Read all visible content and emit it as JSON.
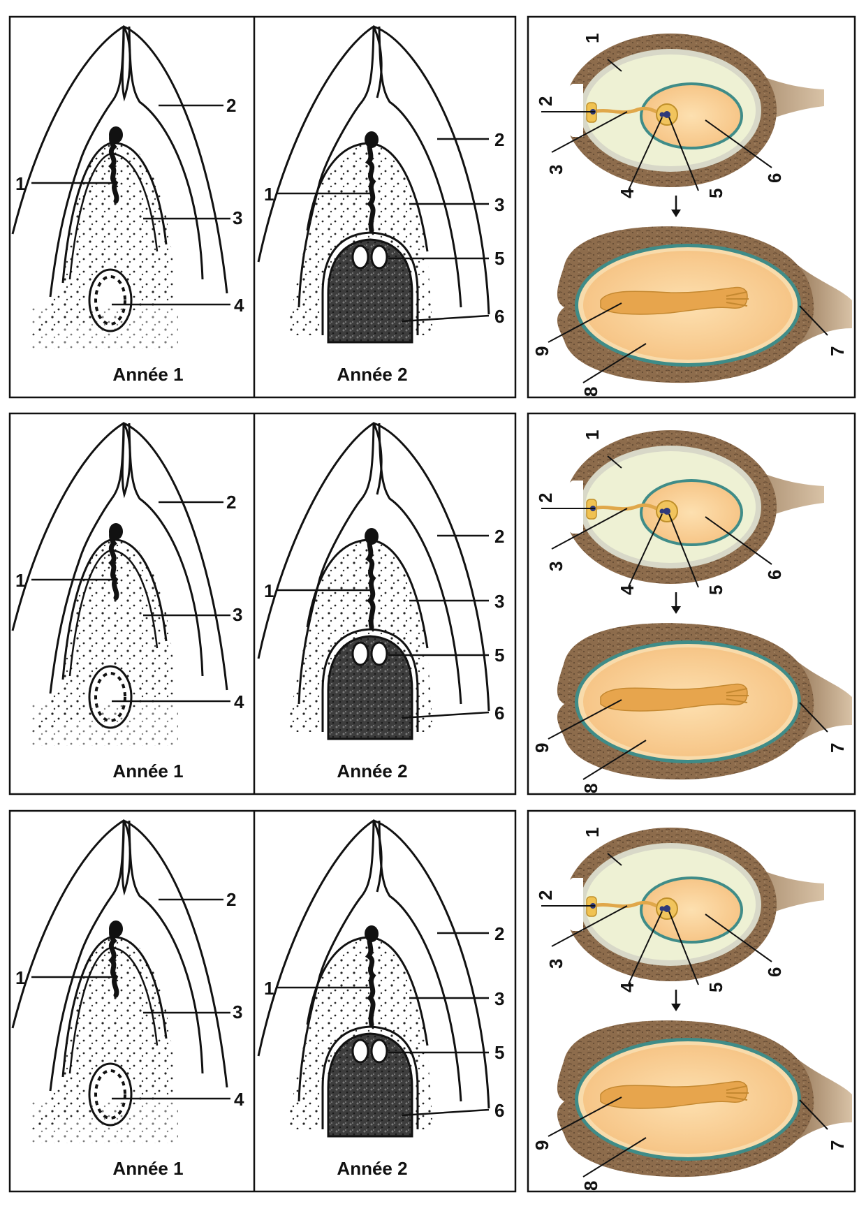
{
  "rows": [
    {
      "left_panel": {
        "year1": {
          "caption": "Année 1",
          "labels": [
            "1",
            "2",
            "3",
            "4"
          ]
        },
        "year2": {
          "caption": "Année 2",
          "labels": [
            "1",
            "2",
            "3",
            "5",
            "6"
          ]
        }
      },
      "right_panel": {
        "top_labels": [
          "1",
          "2",
          "3",
          "4",
          "5",
          "6"
        ],
        "bottom_labels": [
          "7",
          "8",
          "9"
        ]
      }
    },
    {
      "left_panel": {
        "year1": {
          "caption": "Année 1",
          "labels": [
            "1",
            "2",
            "3",
            "4"
          ]
        },
        "year2": {
          "caption": "Année 2",
          "labels": [
            "1",
            "2",
            "3",
            "5",
            "6"
          ]
        }
      },
      "right_panel": {
        "top_labels": [
          "1",
          "2",
          "3",
          "4",
          "5",
          "6"
        ],
        "bottom_labels": [
          "7",
          "8",
          "9"
        ]
      }
    },
    {
      "left_panel": {
        "year1": {
          "caption": "Année 1",
          "labels": [
            "1",
            "2",
            "3",
            "4"
          ]
        },
        "year2": {
          "caption": "Année 2",
          "labels": [
            "1",
            "2",
            "3",
            "5",
            "6"
          ]
        }
      },
      "right_panel": {
        "top_labels": [
          "1",
          "2",
          "3",
          "4",
          "5",
          "6"
        ],
        "bottom_labels": [
          "7",
          "8",
          "9"
        ]
      }
    }
  ],
  "colors": {
    "integument": "#8a6a4a",
    "nucellus": "#eef1d4",
    "embryo_sac": "#f6c98a",
    "embryo": "#e7a54d",
    "sac_border": "#3f8c88",
    "ink": "#111111"
  }
}
